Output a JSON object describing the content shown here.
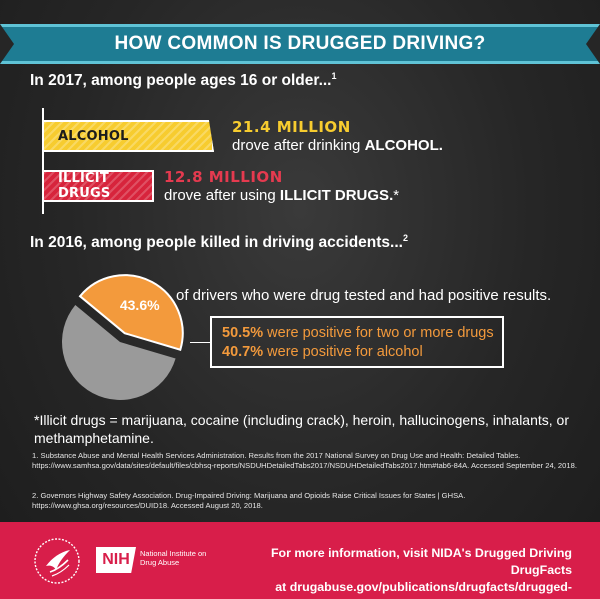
{
  "title": "HOW COMMON IS DRUGGED DRIVING?",
  "section_2017": {
    "heading": "In 2017, among people ages 16 or older...",
    "footnote_mark": "1",
    "alcohol": {
      "bar_label": "ALCOHOL",
      "value": "21.4 MILLION",
      "desc_prefix": "drove after drinking ",
      "desc_bold": "ALCOHOL.",
      "color": "#f7cc2f"
    },
    "illicit": {
      "bar_label": "ILLICIT DRUGS",
      "value": "12.8 MILLION",
      "desc_prefix": "drove after using ",
      "desc_bold": "ILLICIT DRUGS.",
      "desc_suffix": "*",
      "color": "#d7243c"
    }
  },
  "section_2016": {
    "heading": "In 2016, among people killed in driving accidents...",
    "footnote_mark": "2",
    "pie": {
      "value_label": "43.6%",
      "percent": 43.6,
      "highlight_color": "#f39a3c",
      "rest_color": "#9a9a9a"
    },
    "pie_text": "of drivers who were drug tested and had positive results.",
    "callout": [
      {
        "pct": "50.5%",
        "text": " were positive for two or more drugs"
      },
      {
        "pct": "40.7%",
        "text": " were positive for alcohol"
      }
    ]
  },
  "note": "*Illicit drugs = marijuana, cocaine (including crack), heroin, hallucinogens, inhalants, or methamphetamine.",
  "references": [
    "1. Substance Abuse and Mental Health Services Administration. Results from the 2017 National Survey on Drug Use and Health: Detailed Tables. https://www.samhsa.gov/data/sites/default/files/cbhsq-reports/NSDUHDetailedTabs2017/NSDUHDetailedTabs2017.htm#tab6-84A. Accessed September 24, 2018.",
    "2. Governors Highway Safety Association. Drug-Impaired Driving: Marijuana and Opioids Raise Critical Issues for States | GHSA. https://www.ghsa.org/resources/DUID18. Accessed August 20, 2018."
  ],
  "footer": {
    "nih_badge": "NIH",
    "nih_name": "National Institute on Drug Abuse",
    "line1": "For more information, visit NIDA's Drugged Driving DrugFacts",
    "line2": "at drugabuse.gov/publications/drugfacts/drugged-driving.",
    "color": "#d81e4a"
  }
}
